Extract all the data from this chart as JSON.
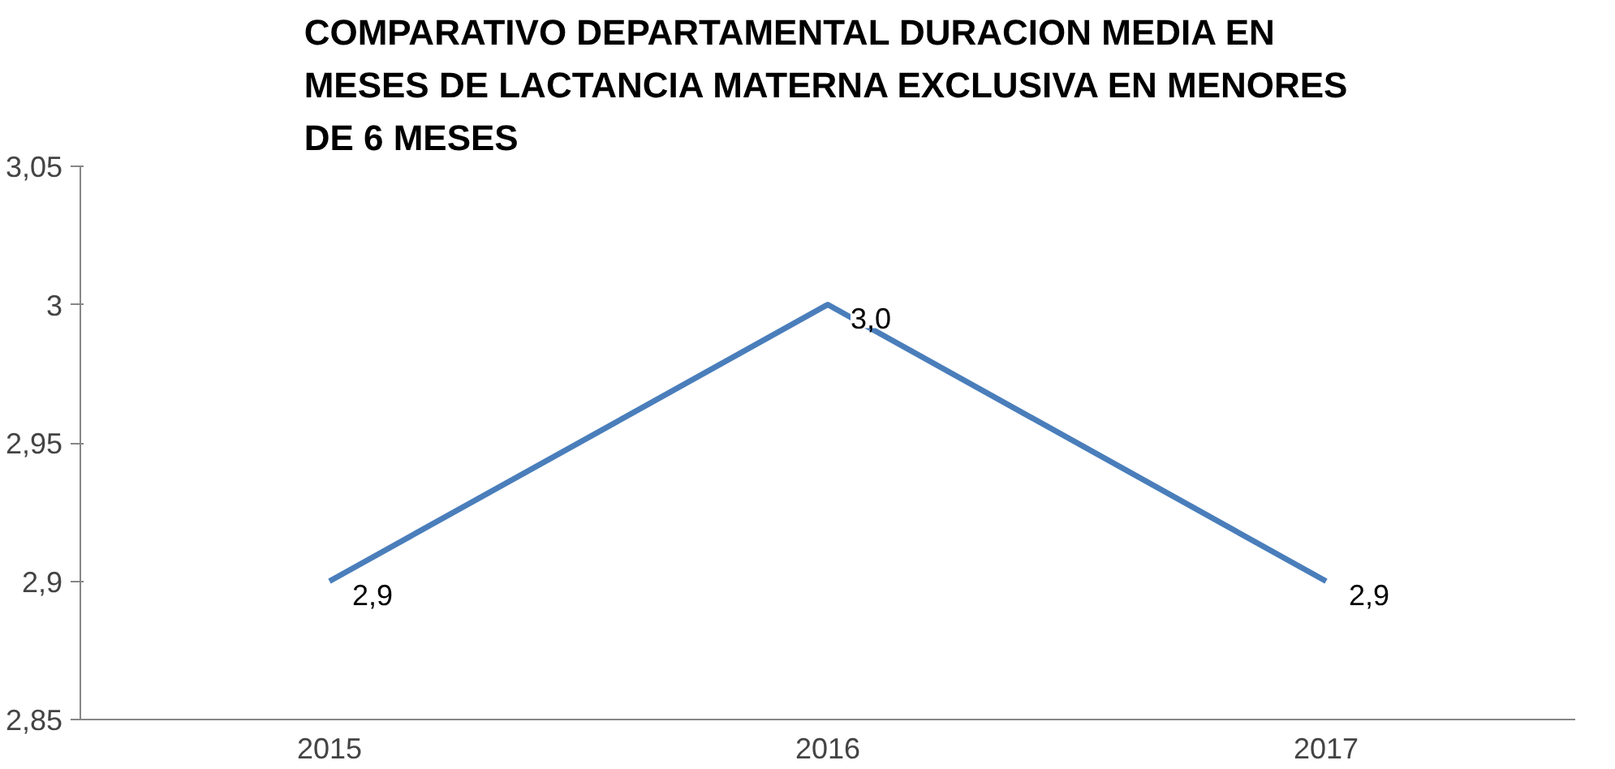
{
  "chart_data": {
    "type": "line",
    "title": "COMPARATIVO DEPARTAMENTAL DURACION MEDIA EN MESES DE LACTANCIA MATERNA EXCLUSIVA EN MENORES DE 6 MESES",
    "categories": [
      "2015",
      "2016",
      "2017"
    ],
    "values": [
      2.9,
      3.0,
      2.9
    ],
    "value_labels": [
      "2,9",
      "3,0",
      "2,9"
    ],
    "color": "#4a7ebb",
    "ylim": [
      2.85,
      3.05
    ],
    "yticks": [
      {
        "value": 2.85,
        "label": "2,85"
      },
      {
        "value": 2.9,
        "label": "2,9"
      },
      {
        "value": 2.95,
        "label": "2,95"
      },
      3,
      {
        "value": 3.05,
        "label": "3,05"
      }
    ],
    "grid": false,
    "marker": "none",
    "line_style": "solid"
  }
}
